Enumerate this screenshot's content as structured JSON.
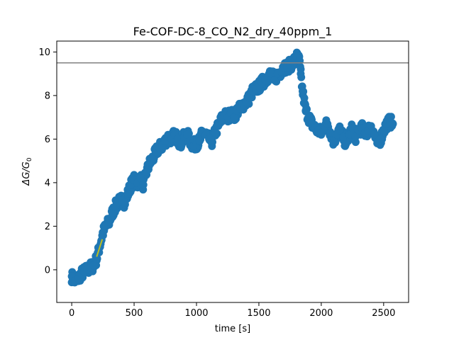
{
  "chart_data": {
    "type": "scatter",
    "title": "Fe-COF-DC-8_CO_N2_dry_40ppm_1",
    "xlabel": "time [s]",
    "ylabel_main": "ΔG/G",
    "ylabel_sub": "0",
    "xlim": [
      -120,
      2700
    ],
    "ylim": [
      -1.5,
      10.5
    ],
    "xticks": [
      0,
      500,
      1000,
      1500,
      2000,
      2500
    ],
    "yticks": [
      0,
      2,
      4,
      6,
      8,
      10
    ],
    "grid": false,
    "colors": {
      "scatter": "#1f77b4",
      "hline": "#808080",
      "fit_line": "#ff7f0e",
      "fit_line_overlay": "#bcbd22"
    },
    "series": [
      {
        "name": "response",
        "kind": "scatter",
        "x": [
          0,
          25,
          50,
          75,
          100,
          125,
          150,
          175,
          200,
          225,
          250,
          275,
          300,
          325,
          350,
          375,
          400,
          425,
          450,
          475,
          500,
          525,
          550,
          575,
          600,
          625,
          650,
          675,
          700,
          725,
          750,
          775,
          800,
          825,
          850,
          875,
          900,
          925,
          950,
          975,
          1000,
          1025,
          1050,
          1075,
          1100,
          1125,
          1150,
          1175,
          1200,
          1225,
          1250,
          1275,
          1300,
          1325,
          1350,
          1375,
          1400,
          1425,
          1450,
          1475,
          1500,
          1525,
          1550,
          1575,
          1600,
          1625,
          1650,
          1675,
          1700,
          1725,
          1750,
          1775,
          1800,
          1825,
          1835,
          1850,
          1875,
          1900,
          1925,
          1950,
          1975,
          2000,
          2025,
          2050,
          2075,
          2100,
          2125,
          2150,
          2175,
          2200,
          2225,
          2250,
          2275,
          2300,
          2325,
          2350,
          2375,
          2400,
          2425,
          2450,
          2475,
          2500,
          2525,
          2550,
          2575
        ],
        "y": [
          -0.3,
          -0.5,
          -0.4,
          -0.2,
          -0.1,
          0.0,
          0.1,
          0.2,
          0.5,
          1.1,
          1.7,
          2.0,
          2.2,
          2.6,
          2.9,
          3.1,
          3.2,
          3.1,
          3.5,
          3.9,
          4.1,
          4.0,
          4.2,
          3.9,
          4.5,
          4.9,
          5.1,
          5.4,
          5.6,
          5.7,
          5.9,
          6.1,
          6.0,
          6.2,
          6.0,
          5.8,
          6.1,
          6.2,
          5.9,
          5.7,
          5.8,
          5.9,
          6.3,
          6.2,
          6.0,
          5.9,
          6.3,
          6.6,
          6.9,
          7.1,
          7.0,
          7.2,
          7.0,
          7.3,
          7.4,
          7.6,
          7.7,
          7.9,
          8.2,
          8.3,
          8.4,
          8.6,
          8.7,
          8.9,
          9.0,
          8.7,
          9.0,
          9.1,
          9.3,
          9.3,
          9.4,
          9.5,
          9.8,
          9.6,
          9.0,
          8.2,
          7.3,
          7.0,
          6.7,
          6.5,
          6.4,
          6.3,
          6.6,
          6.7,
          6.3,
          5.9,
          6.2,
          6.4,
          6.1,
          5.8,
          6.2,
          6.5,
          6.1,
          6.4,
          6.5,
          6.3,
          6.4,
          6.6,
          6.2,
          5.8,
          6.0,
          6.4,
          6.7,
          6.8,
          6.7
        ]
      },
      {
        "name": "threshold",
        "kind": "hline",
        "y": 9.5
      },
      {
        "name": "initial slope fit",
        "kind": "line",
        "x": [
          200,
          245
        ],
        "y": [
          0.6,
          1.4
        ]
      }
    ]
  }
}
